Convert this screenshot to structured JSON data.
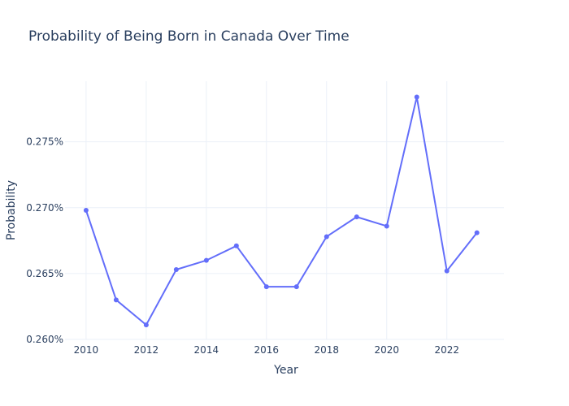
{
  "chart_data": {
    "type": "line",
    "title": "Probability of Being Born in Canada Over Time",
    "xlabel": "Year",
    "ylabel": "Probability",
    "x": [
      2010,
      2011,
      2012,
      2013,
      2014,
      2015,
      2016,
      2017,
      2018,
      2019,
      2020,
      2021,
      2022,
      2023
    ],
    "series": [
      {
        "values": [
          0.002698,
          0.00263,
          0.002611,
          0.002653,
          0.00266,
          0.002671,
          0.00264,
          0.00264,
          0.002678,
          0.002693,
          0.002686,
          0.002784,
          0.002652,
          0.002681
        ],
        "color": "#636efa"
      }
    ],
    "xlim": [
      2009.3,
      2023.9
    ],
    "ylim": [
      0.0026,
      0.002796
    ],
    "xticks": [
      2010,
      2012,
      2014,
      2016,
      2018,
      2020,
      2022
    ],
    "yticks": [
      0.0026,
      0.00265,
      0.0027,
      0.00275
    ],
    "ytick_labels": [
      "0.260%",
      "0.265%",
      "0.270%",
      "0.275%"
    ],
    "grid": true,
    "legend": false
  }
}
